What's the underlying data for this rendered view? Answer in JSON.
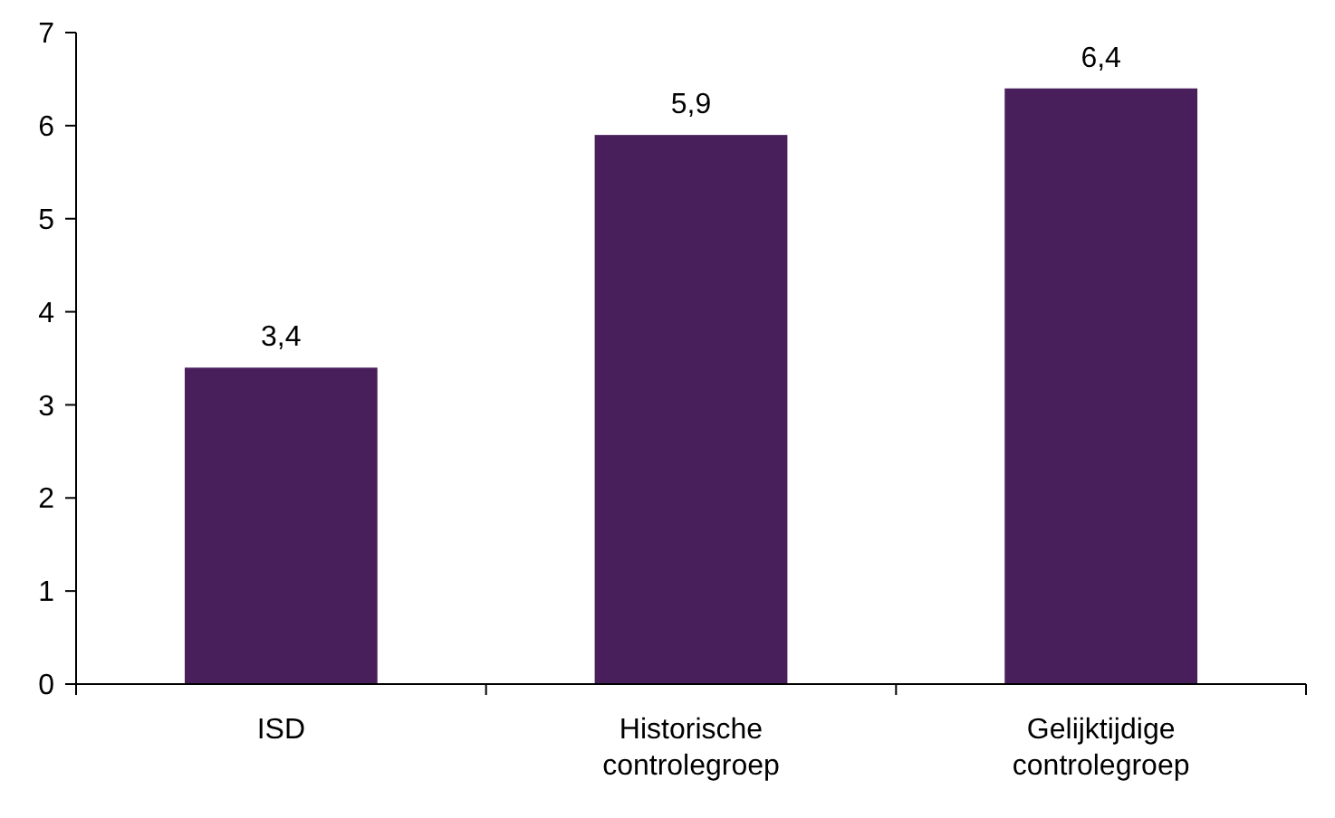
{
  "chart_data": {
    "type": "bar",
    "categories": [
      "ISD",
      "Historische controlegroep",
      "Gelijktijdige controlegroep"
    ],
    "values": [
      3.4,
      5.9,
      6.4
    ],
    "value_labels": [
      "3,4",
      "5,9",
      "6,4"
    ],
    "color": "#481f5b",
    "ylim": [
      0,
      7
    ],
    "yticks": [
      0,
      1,
      2,
      3,
      4,
      5,
      6,
      7
    ],
    "grid": false
  }
}
